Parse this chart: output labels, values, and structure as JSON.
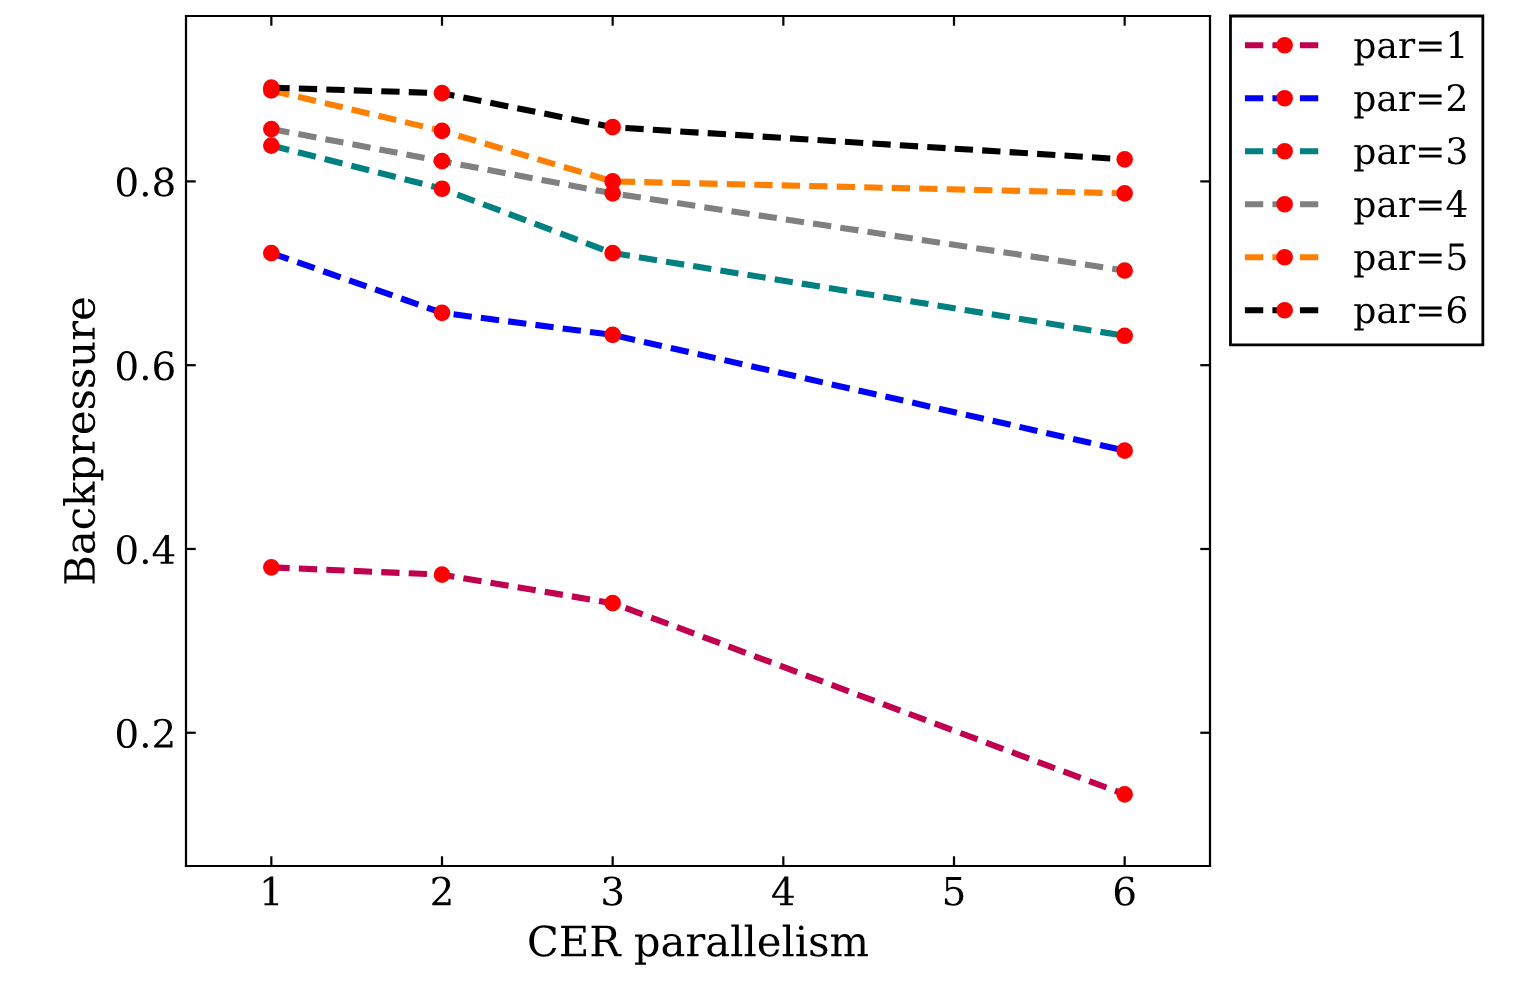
{
  "chart_data": {
    "type": "line",
    "xlabel": "CER parallelism",
    "ylabel": "Backpressure",
    "x": [
      1,
      2,
      3,
      6
    ],
    "series": [
      {
        "name": "par=1",
        "color": "#c0004f",
        "values": [
          0.38,
          0.372,
          0.341,
          0.133
        ]
      },
      {
        "name": "par=2",
        "color": "#0000ff",
        "values": [
          0.722,
          0.657,
          0.633,
          0.507
        ]
      },
      {
        "name": "par=3",
        "color": "#008080",
        "values": [
          0.839,
          0.792,
          0.722,
          0.632
        ]
      },
      {
        "name": "par=4",
        "color": "#808080",
        "values": [
          0.857,
          0.822,
          0.787,
          0.703
        ]
      },
      {
        "name": "par=5",
        "color": "#ff8000",
        "values": [
          0.899,
          0.855,
          0.8,
          0.787
        ]
      },
      {
        "name": "par=6",
        "color": "#000000",
        "values": [
          0.902,
          0.896,
          0.859,
          0.824
        ]
      }
    ],
    "xlim": [
      0.5,
      6.5
    ],
    "xticks": [
      1,
      2,
      3,
      4,
      5,
      6
    ],
    "ylim": [
      0.055,
      0.98
    ],
    "yticks": [
      0.2,
      0.4,
      0.6,
      0.8
    ],
    "grid": false,
    "legend": "top right",
    "marker": "circle",
    "line_style": "dashed"
  }
}
